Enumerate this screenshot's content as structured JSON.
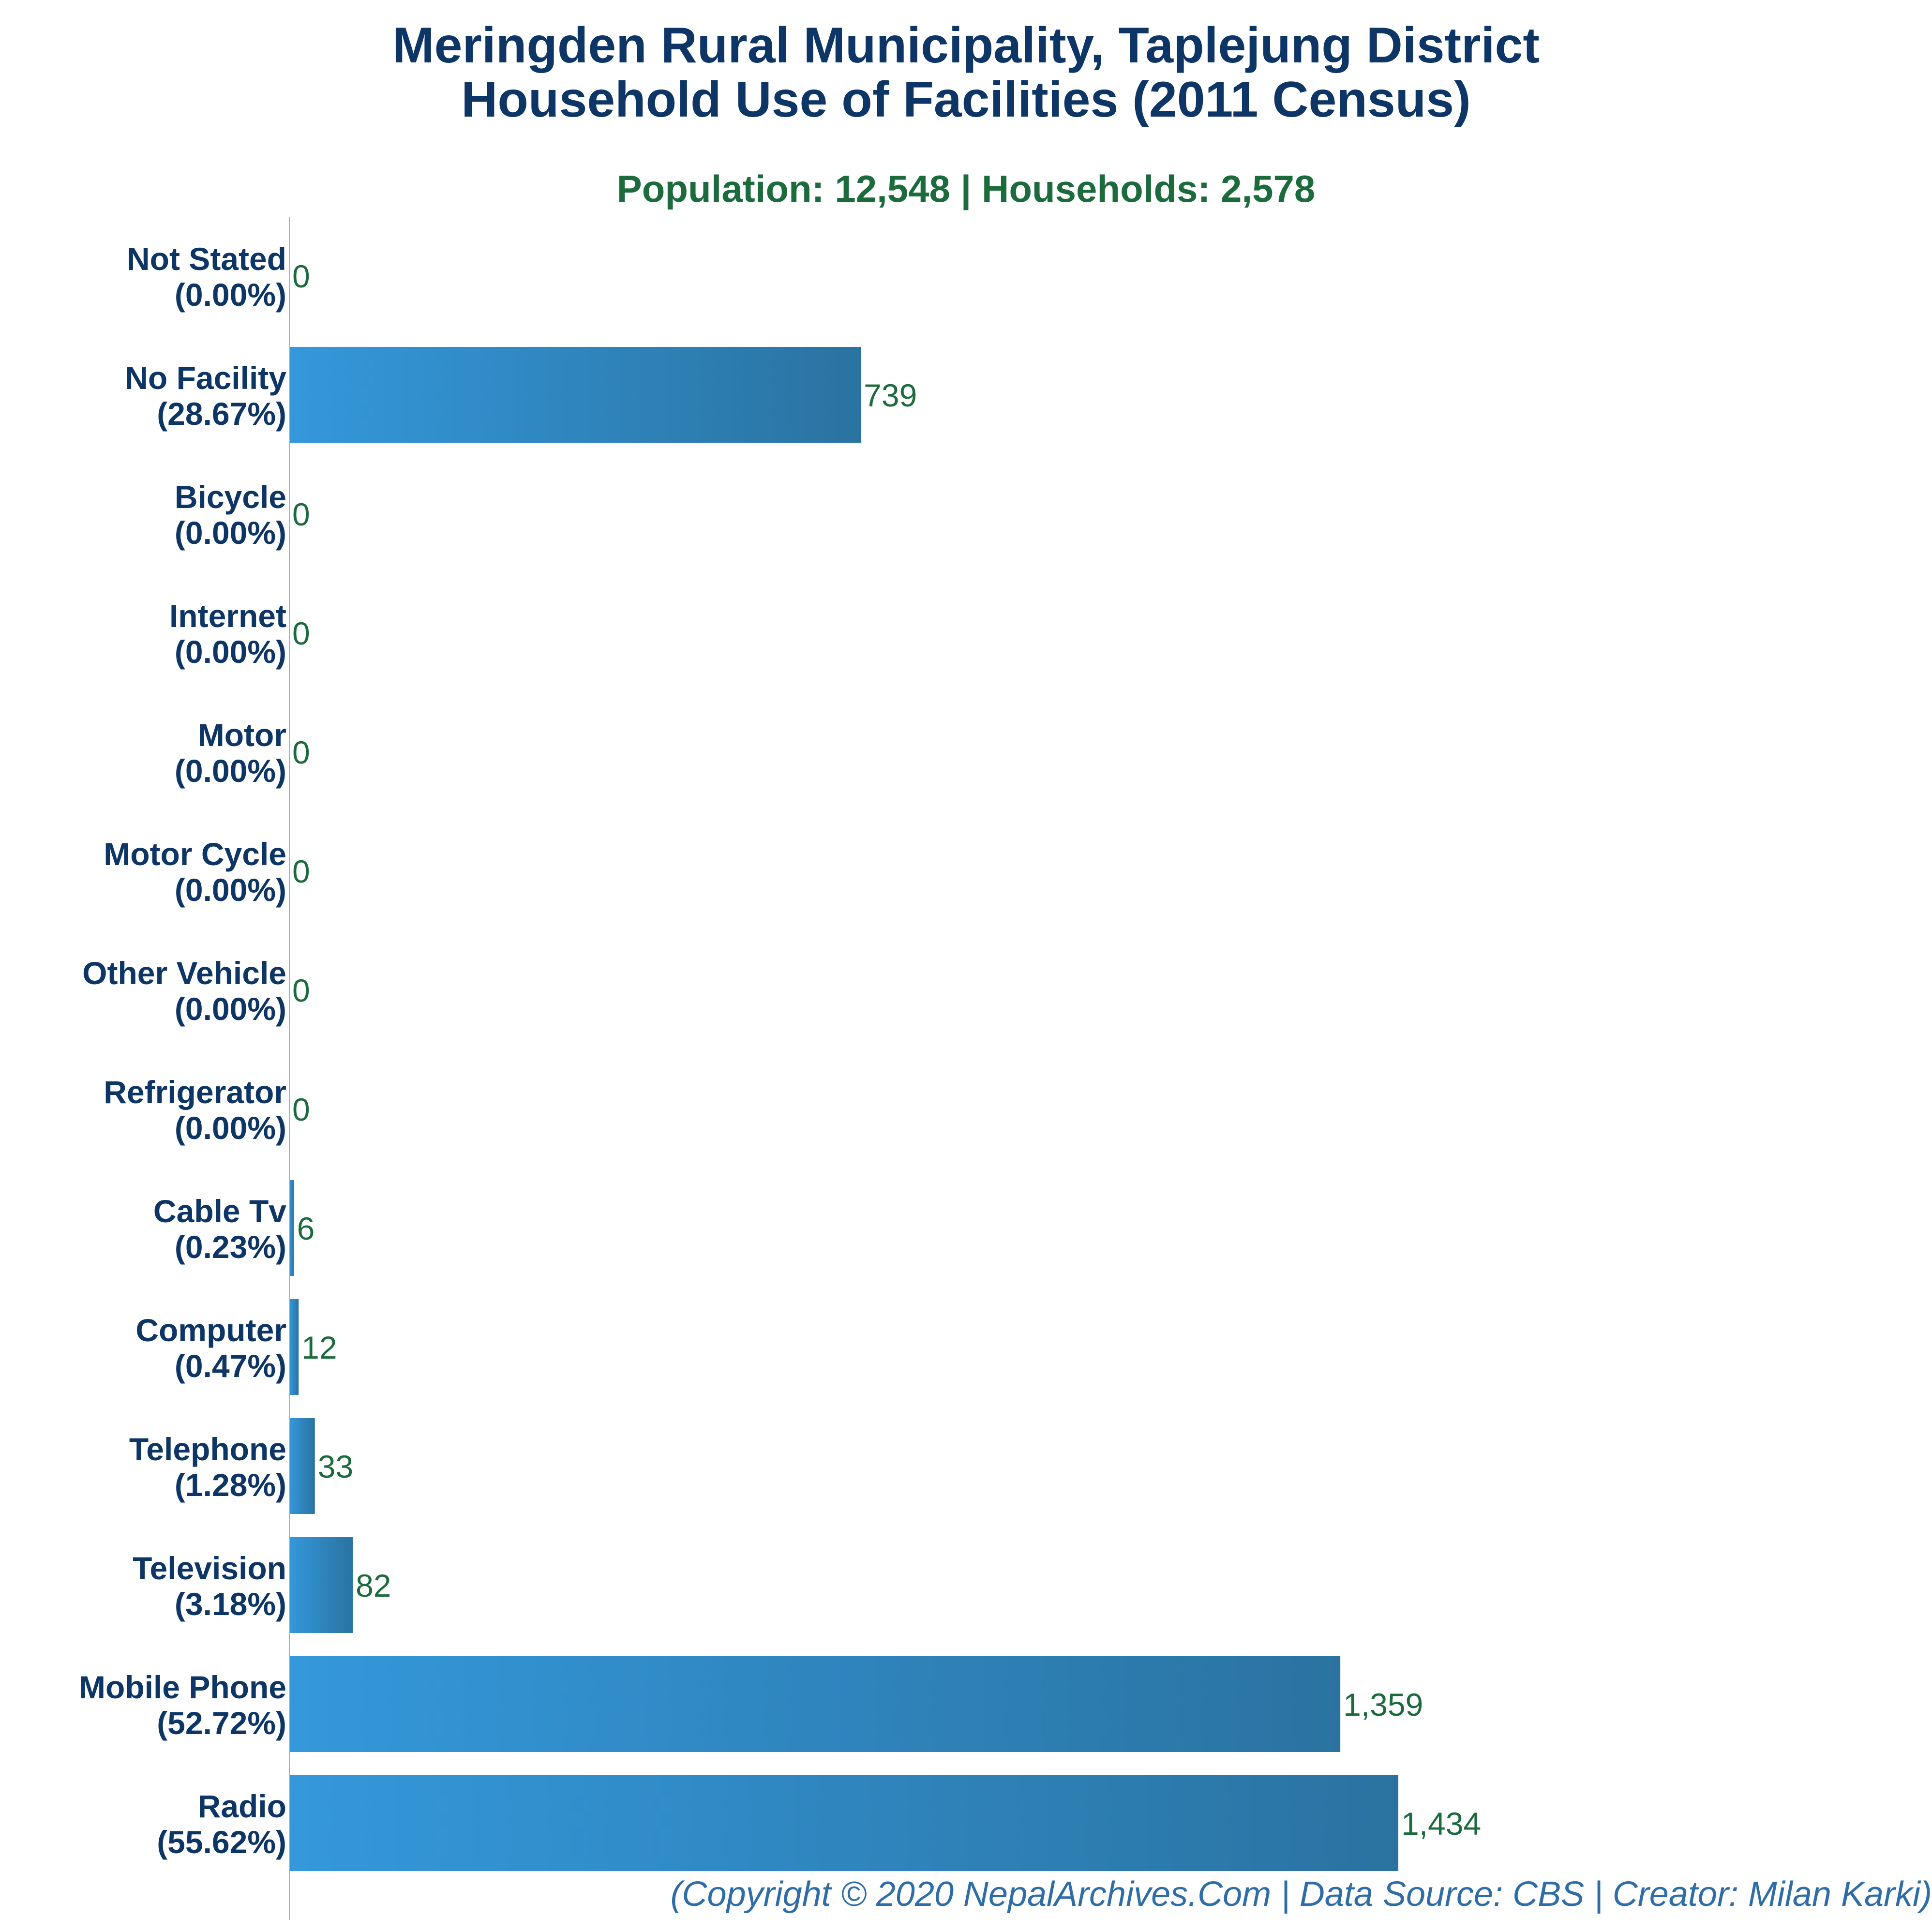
{
  "title_line1": "Meringden Rural Municipality, Taplejung District",
  "title_line2": "Household Use of Facilities (2011 Census)",
  "subtitle": "Population: 12,548 | Households: 2,578",
  "footer": "(Copyright © 2020 NepalArchives.Com | Data Source: CBS | Creator: Milan Karki)",
  "colors": {
    "bar_start": "#3498db",
    "bar_end": "#2a73a1",
    "value_label": "#1c6b3c",
    "category_label": "#0d3566",
    "axis": "#9fb3c8"
  },
  "chart_data": {
    "type": "bar",
    "orientation": "horizontal",
    "categories": [
      "Not Stated",
      "No Facility",
      "Bicycle",
      "Internet",
      "Motor",
      "Motor Cycle",
      "Other Vehicle",
      "Refrigerator",
      "Cable Tv",
      "Computer",
      "Telephone",
      "Television",
      "Mobile Phone",
      "Radio"
    ],
    "percent_labels": [
      "(0.00%)",
      "(28.67%)",
      "(0.00%)",
      "(0.00%)",
      "(0.00%)",
      "(0.00%)",
      "(0.00%)",
      "(0.00%)",
      "(0.23%)",
      "(0.47%)",
      "(1.28%)",
      "(3.18%)",
      "(52.72%)",
      "(55.62%)"
    ],
    "values": [
      0,
      739,
      0,
      0,
      0,
      0,
      0,
      0,
      6,
      12,
      33,
      82,
      1359,
      1434
    ],
    "value_labels": [
      "0",
      "739",
      "0",
      "0",
      "0",
      "0",
      "0",
      "0",
      "6",
      "12",
      "33",
      "82",
      "1,359",
      "1,434"
    ],
    "xlim": [
      0,
      1434
    ],
    "grid": false,
    "legend": "none"
  }
}
